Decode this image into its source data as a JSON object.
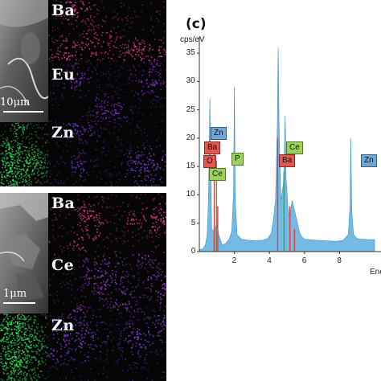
{
  "panel_c_label": "(c)",
  "panel_a": {
    "maps": [
      {
        "element": "Ba",
        "color": "#ff3fa0"
      },
      {
        "element": "Eu",
        "color": "#8a2be2"
      },
      {
        "element": "Zn",
        "color": "#2ee05a"
      },
      {
        "element": "Zn",
        "color": "#7b3fe0"
      }
    ],
    "scale_bar": "10μm"
  },
  "panel_b": {
    "maps": [
      {
        "element": "Ba",
        "color": "#ff3fa0"
      },
      {
        "element": "Ce",
        "color": "#9a3fd0"
      },
      {
        "element": "Zn",
        "color": "#2ee05a"
      },
      {
        "element": "Zn",
        "color": "#7b3fe0"
      }
    ],
    "scale_bar": "1μm"
  },
  "chart_data": {
    "type": "area",
    "ylabel": "cps/eV",
    "xlabel": "Ene",
    "xlim": [
      0,
      10
    ],
    "ylim": [
      0,
      37
    ],
    "xticks": [
      "2",
      "4",
      "6",
      "8"
    ],
    "yticks": [
      "0",
      "5",
      "10",
      "15",
      "20",
      "25",
      "30",
      "35"
    ],
    "x": [
      0.0,
      0.2,
      0.35,
      0.45,
      0.52,
      0.6,
      0.7,
      0.85,
      1.0,
      1.1,
      1.3,
      1.5,
      1.7,
      1.85,
      1.95,
      2.0,
      2.05,
      2.15,
      2.4,
      2.8,
      3.2,
      3.6,
      3.9,
      4.1,
      4.2,
      4.35,
      4.45,
      4.5,
      4.55,
      4.65,
      4.8,
      4.85,
      4.9,
      4.95,
      5.05,
      5.15,
      5.3,
      5.45,
      5.6,
      5.7,
      5.85,
      6.0,
      6.3,
      6.7,
      7.2,
      7.8,
      8.2,
      8.5,
      8.6,
      8.64,
      8.7,
      8.8,
      9.0,
      9.3,
      9.7,
      10.0
    ],
    "y": [
      0.3,
      0.5,
      1.2,
      3,
      9,
      27,
      4,
      3.5,
      5,
      3,
      1.2,
      1.4,
      2.2,
      3.5,
      10,
      29,
      9,
      3,
      2.2,
      2,
      1.9,
      2,
      2.3,
      3.2,
      5,
      9,
      22,
      36,
      22,
      9,
      12,
      17,
      24,
      13,
      8,
      6,
      9,
      7,
      5,
      3.5,
      2.6,
      2.2,
      2.1,
      2,
      1.9,
      1.8,
      2,
      3,
      8,
      20,
      7,
      3,
      2.3,
      2.2,
      2.1,
      2.1
    ],
    "color": "#5aaee0",
    "element_lines": [
      {
        "x": 0.85,
        "y": 18,
        "color": "#e63c3c"
      },
      {
        "x": 0.98,
        "y": 16,
        "color": "#2ab02a"
      },
      {
        "x": 1.05,
        "y": 8,
        "color": "#e63c3c"
      },
      {
        "x": 4.47,
        "y": 20,
        "color": "#e63c3c"
      },
      {
        "x": 4.83,
        "y": 14,
        "color": "#2ab02a"
      },
      {
        "x": 5.17,
        "y": 8,
        "color": "#e63c3c"
      },
      {
        "x": 5.43,
        "y": 4,
        "color": "#e63c3c"
      }
    ],
    "peak_labels": [
      {
        "text": "Zn",
        "kind": "blue"
      },
      {
        "text": "Ba",
        "kind": "red"
      },
      {
        "text": "O",
        "kind": "red"
      },
      {
        "text": "Ce",
        "kind": "green"
      },
      {
        "text": "P",
        "kind": "green"
      },
      {
        "text": "Ce",
        "kind": "green"
      },
      {
        "text": "Ba",
        "kind": "red"
      },
      {
        "text": "Zn",
        "kind": "blue"
      }
    ]
  }
}
